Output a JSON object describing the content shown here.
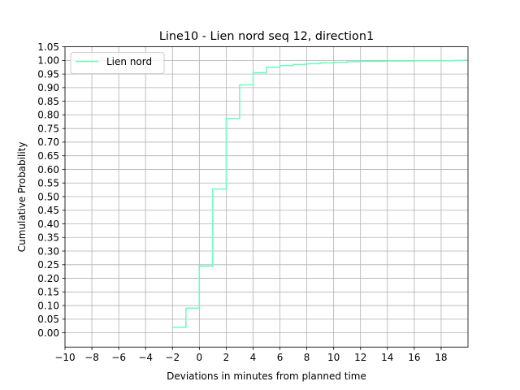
{
  "chart_data": {
    "type": "line",
    "drawstyle": "steps-post",
    "title": "Line10 - Lien nord seq 12, direction1",
    "xlabel": "Deviations in minutes from planned time",
    "ylabel": "Cumulative Probability",
    "xlim": [
      -10,
      20
    ],
    "ylim": [
      -0.0525,
      1.05
    ],
    "xticks": [
      -10,
      -8,
      -6,
      -4,
      -2,
      0,
      2,
      4,
      6,
      8,
      10,
      12,
      14,
      16,
      18
    ],
    "xtick_labels": [
      "−10",
      "−8",
      "−6",
      "−4",
      "−2",
      "0",
      "2",
      "4",
      "6",
      "8",
      "10",
      "12",
      "14",
      "16",
      "18"
    ],
    "yticks": [
      0.0,
      0.05,
      0.1,
      0.15,
      0.2,
      0.25,
      0.3,
      0.35,
      0.4,
      0.45,
      0.5,
      0.55,
      0.6,
      0.65,
      0.7,
      0.75,
      0.8,
      0.85,
      0.9,
      0.95,
      1.0,
      1.05
    ],
    "ytick_labels": [
      "0.00",
      "0.05",
      "0.10",
      "0.15",
      "0.20",
      "0.25",
      "0.30",
      "0.35",
      "0.40",
      "0.45",
      "0.50",
      "0.55",
      "0.60",
      "0.65",
      "0.70",
      "0.75",
      "0.80",
      "0.85",
      "0.90",
      "0.95",
      "1.00",
      "1.05"
    ],
    "grid": true,
    "legend_position": "upper left",
    "series": [
      {
        "name": "Lien nord",
        "color": "#66ffbb",
        "x": [
          -2,
          -1,
          0,
          1,
          2,
          3,
          4,
          5,
          6,
          7,
          8,
          9,
          10,
          11,
          12,
          13,
          14,
          15,
          16,
          17,
          18,
          19,
          20
        ],
        "y": [
          0.02,
          0.09,
          0.245,
          0.528,
          0.787,
          0.91,
          0.955,
          0.975,
          0.981,
          0.985,
          0.988,
          0.991,
          0.993,
          0.995,
          0.997,
          0.997,
          0.998,
          0.998,
          0.999,
          0.999,
          0.999,
          1.0,
          1.0
        ]
      }
    ]
  }
}
